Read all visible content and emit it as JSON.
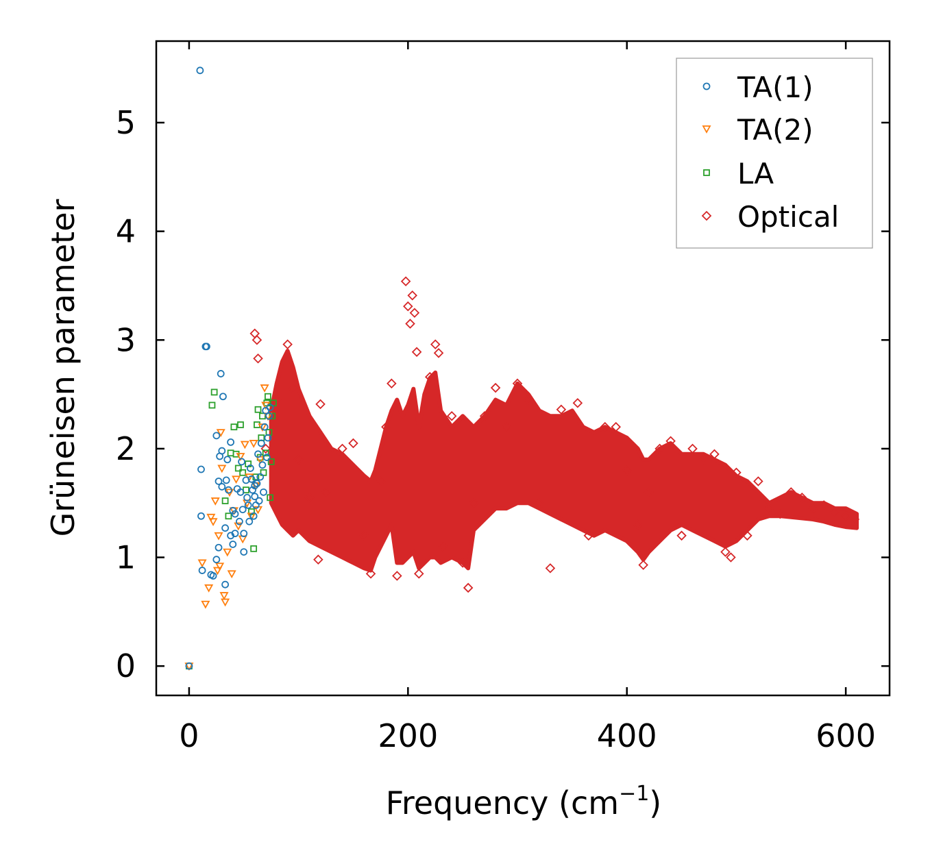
{
  "chart_data": {
    "type": "scatter",
    "title": "",
    "xlabel": "Frequency (cm",
    "xlabel_sup": "−1",
    "xlabel_suffix": ")",
    "ylabel": "Grüneisen parameter",
    "xlim": [
      -30,
      640
    ],
    "ylim": [
      -0.27,
      5.75
    ],
    "xticks": [
      0,
      200,
      400,
      600
    ],
    "xtick_labels": [
      "0",
      "200",
      "400",
      "600"
    ],
    "yticks": [
      0,
      1,
      2,
      3,
      4,
      5
    ],
    "ytick_labels": [
      "0",
      "1",
      "2",
      "3",
      "4",
      "5"
    ],
    "grid": false,
    "legend_position": "top-right",
    "series": [
      {
        "name": "TA(1)",
        "marker": "circle",
        "color": "#1f77b4",
        "points": [
          [
            0,
            0
          ],
          [
            10,
            5.48
          ],
          [
            15,
            2.94
          ],
          [
            16,
            2.94
          ],
          [
            11,
            1.81
          ],
          [
            12,
            0.88
          ],
          [
            11,
            1.38
          ],
          [
            20,
            0.84
          ],
          [
            22,
            0.83
          ],
          [
            25,
            2.12
          ],
          [
            28,
            1.93
          ],
          [
            29,
            2.69
          ],
          [
            31,
            2.48
          ],
          [
            25,
            0.98
          ],
          [
            27,
            1.09
          ],
          [
            30,
            1.98
          ],
          [
            33,
            1.27
          ],
          [
            33,
            0.75
          ],
          [
            34,
            1.71
          ],
          [
            36,
            1.62
          ],
          [
            38,
            2.06
          ],
          [
            40,
            1.43
          ],
          [
            40,
            1.12
          ],
          [
            42,
            1.22
          ],
          [
            44,
            1.63
          ],
          [
            46,
            1.33
          ],
          [
            48,
            1.88
          ],
          [
            49,
            1.44
          ],
          [
            50,
            1.05
          ],
          [
            52,
            1.71
          ],
          [
            53,
            1.55
          ],
          [
            55,
            1.33
          ],
          [
            56,
            1.82
          ],
          [
            58,
            1.62
          ],
          [
            60,
            1.56
          ],
          [
            61,
            1.48
          ],
          [
            62,
            1.68
          ],
          [
            63,
            1.95
          ],
          [
            64,
            1.52
          ],
          [
            65,
            1.74
          ],
          [
            66,
            2.05
          ],
          [
            67,
            1.85
          ],
          [
            68,
            1.6
          ],
          [
            69,
            2.2
          ],
          [
            70,
            2.35
          ],
          [
            71,
            1.92
          ],
          [
            72,
            2.1
          ],
          [
            73,
            2.3
          ],
          [
            74,
            2.38
          ],
          [
            27,
            1.7
          ],
          [
            30,
            1.65
          ],
          [
            35,
            1.9
          ],
          [
            38,
            1.2
          ],
          [
            42,
            1.4
          ],
          [
            47,
            1.6
          ],
          [
            50,
            1.22
          ],
          [
            54,
            1.48
          ],
          [
            57,
            1.72
          ],
          [
            59,
            1.38
          ],
          [
            60,
            1.66
          ]
        ]
      },
      {
        "name": "TA(2)",
        "marker": "triangle-down",
        "color": "#ff7f0e",
        "points": [
          [
            0,
            0
          ],
          [
            12,
            0.95
          ],
          [
            15,
            0.57
          ],
          [
            18,
            0.72
          ],
          [
            20,
            1.37
          ],
          [
            22,
            1.33
          ],
          [
            24,
            1.52
          ],
          [
            26,
            0.88
          ],
          [
            27,
            1.2
          ],
          [
            28,
            0.92
          ],
          [
            29,
            2.15
          ],
          [
            30,
            1.82
          ],
          [
            32,
            0.65
          ],
          [
            33,
            0.59
          ],
          [
            35,
            1.05
          ],
          [
            37,
            1.6
          ],
          [
            39,
            0.85
          ],
          [
            41,
            1.43
          ],
          [
            43,
            1.72
          ],
          [
            45,
            1.29
          ],
          [
            47,
            1.93
          ],
          [
            49,
            1.17
          ],
          [
            51,
            2.04
          ],
          [
            53,
            1.5
          ],
          [
            55,
            1.74
          ],
          [
            57,
            1.38
          ],
          [
            59,
            2.05
          ],
          [
            61,
            1.66
          ],
          [
            63,
            1.44
          ],
          [
            65,
            1.9
          ],
          [
            67,
            2.2
          ],
          [
            69,
            2.56
          ],
          [
            70,
            2.4
          ],
          [
            72,
            2.3
          ]
        ]
      },
      {
        "name": "LA",
        "marker": "square",
        "color": "#2ca02c",
        "points": [
          [
            0,
            0
          ],
          [
            21,
            2.4
          ],
          [
            23,
            2.52
          ],
          [
            33,
            1.52
          ],
          [
            36,
            1.38
          ],
          [
            38,
            1.96
          ],
          [
            41,
            2.2
          ],
          [
            43,
            1.95
          ],
          [
            45,
            1.82
          ],
          [
            47,
            2.22
          ],
          [
            49,
            1.78
          ],
          [
            52,
            1.62
          ],
          [
            54,
            1.86
          ],
          [
            57,
            1.42
          ],
          [
            59,
            1.08
          ],
          [
            61,
            1.74
          ],
          [
            62,
            2.22
          ],
          [
            63,
            2.36
          ],
          [
            65,
            1.92
          ],
          [
            66,
            2.1
          ],
          [
            67,
            2.3
          ],
          [
            68,
            1.78
          ],
          [
            70,
            1.96
          ],
          [
            71,
            2.42
          ],
          [
            72,
            2.48
          ],
          [
            73,
            2.15
          ],
          [
            74,
            1.55
          ],
          [
            75,
            1.88
          ],
          [
            76,
            2.3
          ],
          [
            77,
            2.42
          ]
        ]
      },
      {
        "name": "Optical",
        "marker": "diamond",
        "color": "#d62728",
        "points": [
          [
            60,
            3.06
          ],
          [
            62,
            3.0
          ],
          [
            63,
            2.83
          ],
          [
            70,
            2.0
          ],
          [
            80,
            2.45
          ],
          [
            90,
            2.96
          ],
          [
            95,
            2.55
          ],
          [
            100,
            1.9
          ],
          [
            110,
            1.55
          ],
          [
            118,
            0.98
          ],
          [
            120,
            2.41
          ],
          [
            125,
            1.6
          ],
          [
            140,
            2.0
          ],
          [
            150,
            2.05
          ],
          [
            160,
            1.2
          ],
          [
            166,
            0.85
          ],
          [
            175,
            1.7
          ],
          [
            180,
            2.2
          ],
          [
            185,
            2.6
          ],
          [
            190,
            0.83
          ],
          [
            198,
            3.54
          ],
          [
            200,
            3.31
          ],
          [
            202,
            3.15
          ],
          [
            204,
            3.41
          ],
          [
            206,
            3.25
          ],
          [
            208,
            2.89
          ],
          [
            210,
            0.85
          ],
          [
            220,
            2.66
          ],
          [
            225,
            2.96
          ],
          [
            228,
            2.88
          ],
          [
            232,
            1.1
          ],
          [
            240,
            2.3
          ],
          [
            250,
            0.95
          ],
          [
            255,
            0.72
          ],
          [
            260,
            1.5
          ],
          [
            270,
            2.3
          ],
          [
            280,
            2.56
          ],
          [
            290,
            2.2
          ],
          [
            300,
            2.6
          ],
          [
            310,
            2.45
          ],
          [
            320,
            1.5
          ],
          [
            330,
            0.9
          ],
          [
            340,
            2.36
          ],
          [
            355,
            2.42
          ],
          [
            365,
            1.2
          ],
          [
            380,
            2.2
          ],
          [
            390,
            2.2
          ],
          [
            400,
            1.8
          ],
          [
            410,
            1.3
          ],
          [
            415,
            0.93
          ],
          [
            420,
            1.6
          ],
          [
            430,
            2.0
          ],
          [
            440,
            2.07
          ],
          [
            450,
            1.2
          ],
          [
            460,
            2.0
          ],
          [
            470,
            1.9
          ],
          [
            480,
            1.95
          ],
          [
            490,
            1.05
          ],
          [
            495,
            1.0
          ],
          [
            500,
            1.78
          ],
          [
            510,
            1.2
          ],
          [
            520,
            1.7
          ],
          [
            530,
            1.45
          ],
          [
            540,
            1.4
          ],
          [
            550,
            1.6
          ],
          [
            560,
            1.55
          ],
          [
            570,
            1.45
          ],
          [
            580,
            1.48
          ],
          [
            590,
            1.42
          ],
          [
            600,
            1.38
          ],
          [
            608,
            1.35
          ]
        ]
      }
    ],
    "optical_band": {
      "x": [
        75,
        80,
        85,
        90,
        95,
        100,
        110,
        120,
        130,
        140,
        150,
        160,
        166,
        170,
        180,
        185,
        190,
        195,
        200,
        205,
        210,
        215,
        220,
        225,
        230,
        240,
        250,
        255,
        260,
        270,
        280,
        290,
        300,
        310,
        320,
        330,
        340,
        350,
        360,
        370,
        380,
        390,
        400,
        410,
        415,
        420,
        430,
        440,
        450,
        460,
        470,
        480,
        490,
        500,
        510,
        520,
        530,
        540,
        550,
        560,
        570,
        580,
        590,
        600,
        610
      ],
      "upper": [
        2.35,
        2.6,
        2.8,
        2.9,
        2.75,
        2.55,
        2.3,
        2.15,
        2.0,
        1.95,
        1.85,
        1.75,
        1.7,
        1.8,
        2.2,
        2.35,
        2.45,
        2.3,
        2.4,
        2.55,
        2.2,
        2.5,
        2.65,
        2.7,
        2.35,
        2.2,
        2.3,
        2.25,
        2.2,
        2.3,
        2.45,
        2.4,
        2.6,
        2.5,
        2.35,
        2.3,
        2.3,
        2.35,
        2.2,
        2.15,
        2.2,
        2.15,
        2.1,
        2.0,
        1.9,
        1.9,
        2.0,
        2.05,
        1.95,
        1.95,
        1.95,
        1.9,
        1.85,
        1.75,
        1.7,
        1.6,
        1.5,
        1.55,
        1.6,
        1.55,
        1.5,
        1.5,
        1.45,
        1.45,
        1.4
      ],
      "lower": [
        1.5,
        1.4,
        1.3,
        1.25,
        1.2,
        1.25,
        1.15,
        1.1,
        1.05,
        1.0,
        0.95,
        0.9,
        0.88,
        1.0,
        1.2,
        1.3,
        0.95,
        0.95,
        1.0,
        1.05,
        0.9,
        0.95,
        1.0,
        1.0,
        0.95,
        1.0,
        0.95,
        0.9,
        1.25,
        1.35,
        1.45,
        1.45,
        1.5,
        1.5,
        1.45,
        1.4,
        1.35,
        1.3,
        1.25,
        1.2,
        1.25,
        1.2,
        1.15,
        1.05,
        0.98,
        1.05,
        1.15,
        1.25,
        1.3,
        1.25,
        1.2,
        1.15,
        1.1,
        1.15,
        1.25,
        1.35,
        1.38,
        1.38,
        1.37,
        1.36,
        1.35,
        1.33,
        1.3,
        1.28,
        1.27
      ]
    }
  }
}
